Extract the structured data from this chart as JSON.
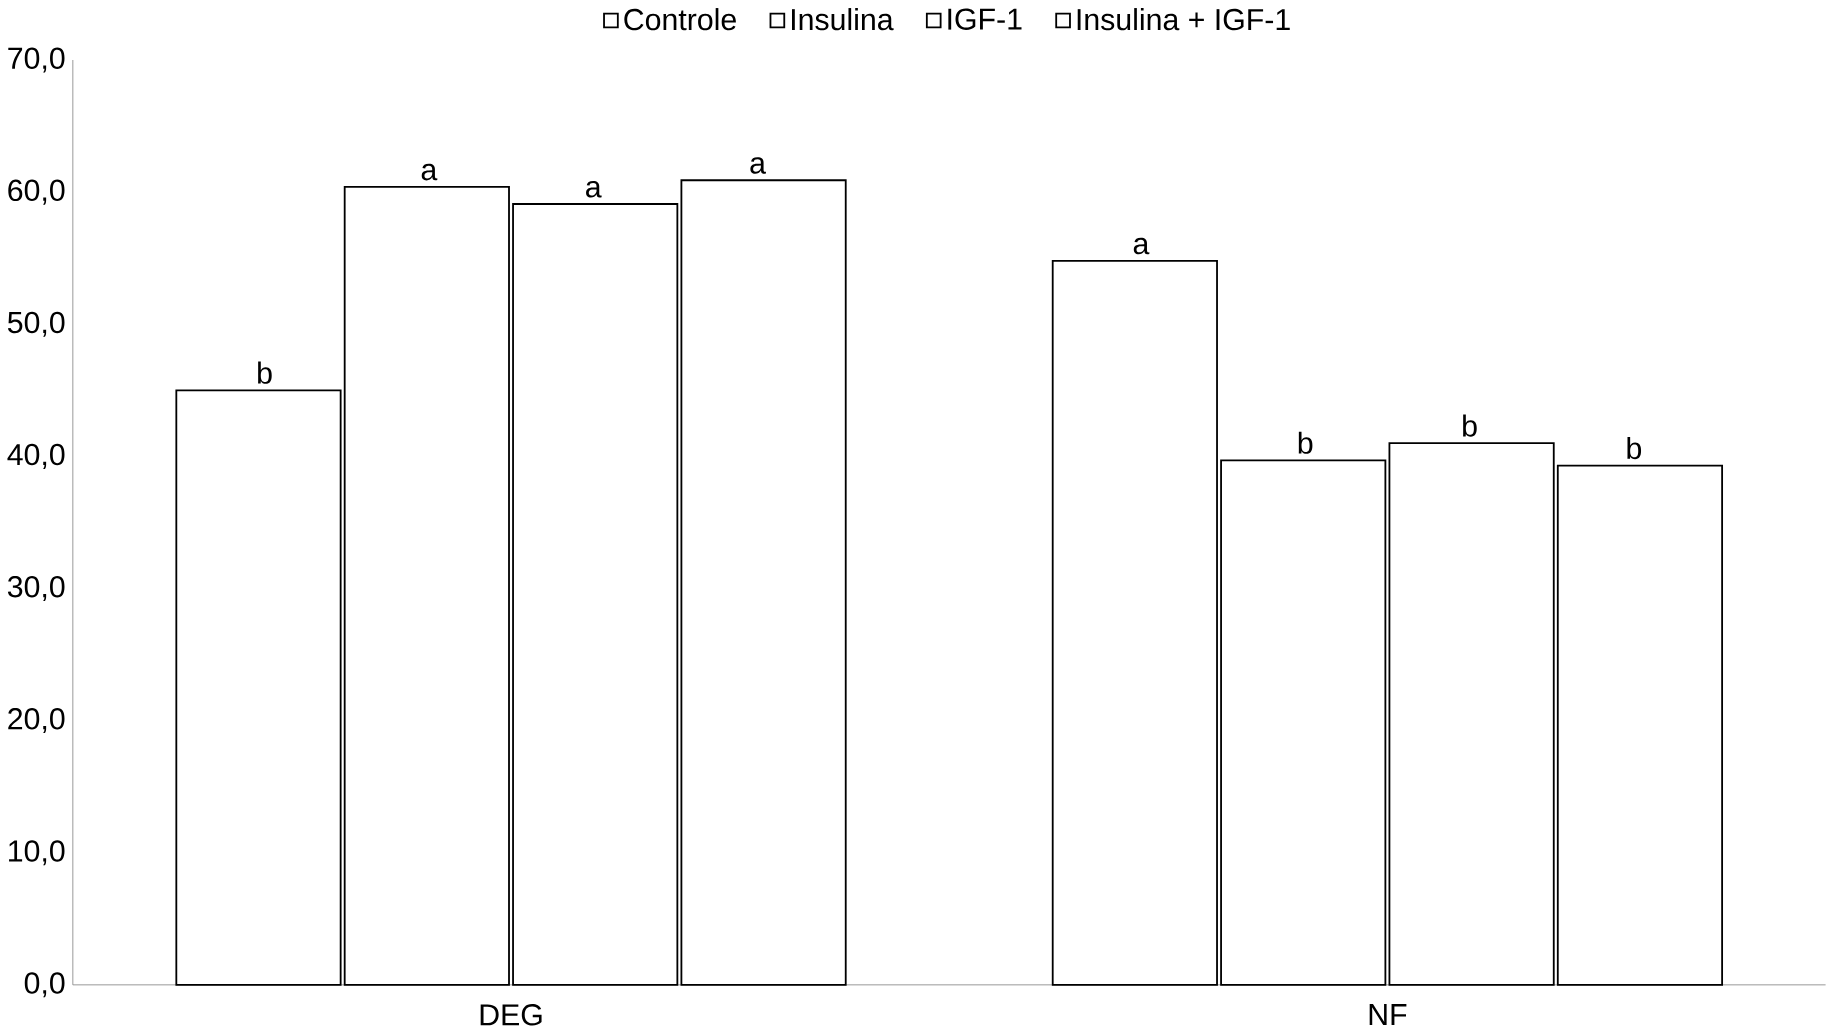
{
  "chart_data": {
    "type": "bar",
    "categories": [
      "DEG",
      "NF"
    ],
    "series": [
      {
        "name": "Controle",
        "color": "#ffffff",
        "values": [
          45.0,
          54.8
        ],
        "value_labels": [
          "b",
          "a"
        ]
      },
      {
        "name": "Insulina",
        "color": "#ffffff",
        "values": [
          60.4,
          39.7
        ],
        "value_labels": [
          "a",
          "b"
        ]
      },
      {
        "name": "IGF-1",
        "color": "#ffffff",
        "values": [
          59.1,
          41.0
        ],
        "value_labels": [
          "a",
          "b"
        ]
      },
      {
        "name": "Insulina + IGF-1",
        "color": "#ffffff",
        "values": [
          60.9,
          39.3
        ],
        "value_labels": [
          "a",
          "b"
        ]
      }
    ],
    "ylim": [
      0,
      70
    ],
    "yticks": [
      {
        "value": 0,
        "label": "0,0"
      },
      {
        "value": 10,
        "label": "10,0"
      },
      {
        "value": 20,
        "label": "20,0"
      },
      {
        "value": 30,
        "label": "30,0"
      },
      {
        "value": 40,
        "label": "40,0"
      },
      {
        "value": 50,
        "label": "50,0"
      },
      {
        "value": 60,
        "label": "60,0"
      },
      {
        "value": 70,
        "label": "70,0"
      }
    ],
    "grid": false,
    "legend": "top"
  }
}
